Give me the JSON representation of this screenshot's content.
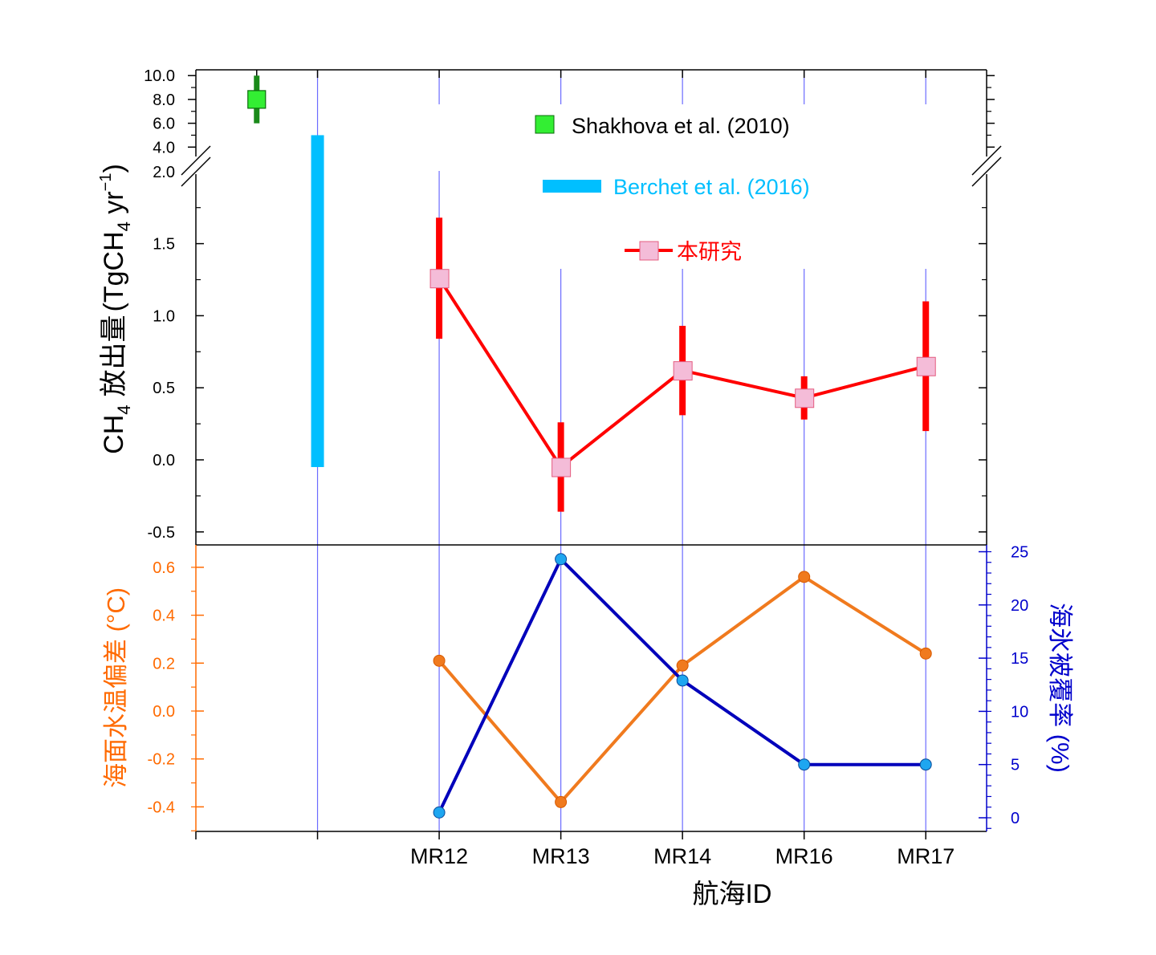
{
  "chart_data": [
    {
      "type": "scatter",
      "panel": "top",
      "ylabel": {
        "prefix": "CH",
        "prefix_sub": "4",
        "main": "放出量",
        "unit_open": "(TgCH",
        "unit_sub": "4",
        "unit_mid": " yr",
        "unit_sup": "−1",
        "unit_close": ")"
      },
      "categories": [
        "MR12",
        "MR13",
        "MR14",
        "MR16",
        "MR17"
      ],
      "xlabel": "航海ID",
      "lower_axis": {
        "ylim": [
          -0.55,
          2.0
        ],
        "ticks": [
          "-0.5",
          "0.0",
          "0.5",
          "1.0",
          "1.5",
          "2.0"
        ]
      },
      "upper_axis": {
        "ylim": [
          2.0,
          10.5
        ],
        "ticks": [
          "2.0",
          "4.0",
          "6.0",
          "8.0",
          "10.0"
        ]
      },
      "series": [
        {
          "name": "本研究",
          "color": "#ff0000",
          "marker_color": "#f4bcd8",
          "x": [
            "MR12",
            "MR13",
            "MR14",
            "MR16",
            "MR17"
          ],
          "values": [
            1.26,
            -0.05,
            0.62,
            0.43,
            0.65
          ],
          "err_low": [
            0.84,
            -0.36,
            0.31,
            0.28,
            0.2
          ],
          "err_high": [
            1.68,
            0.26,
            0.93,
            0.58,
            1.1
          ]
        },
        {
          "name": "Shakhova et al. (2010)",
          "color": "#33ee33",
          "err_color": "#1a8a1a",
          "value": 8.0,
          "err_low": 6.0,
          "err_high": 10.0
        },
        {
          "name": "Berchet et al. (2016)",
          "color": "#00bfff",
          "range_low": -0.05,
          "range_high": 5.0
        }
      ]
    },
    {
      "type": "line",
      "panel": "bottom",
      "categories": [
        "MR12",
        "MR13",
        "MR14",
        "MR16",
        "MR17"
      ],
      "left_axis": {
        "label": "海面水温偏差 (°C)",
        "color": "#ff6a00",
        "ylim": [
          -0.5,
          0.68
        ],
        "ticks": [
          "-0.4",
          "-0.2",
          "0.0",
          "0.2",
          "0.4",
          "0.6"
        ]
      },
      "right_axis": {
        "label": "海氷被覆率 (%)",
        "color": "#0000cc",
        "ylim": [
          -1.2,
          25.5
        ],
        "ticks": [
          "0",
          "5",
          "10",
          "15",
          "20",
          "25"
        ]
      },
      "series": [
        {
          "axis": "left",
          "color": "#f07a1e",
          "values": [
            0.21,
            -0.38,
            0.19,
            0.56,
            0.24
          ]
        },
        {
          "axis": "right",
          "color": "#0000bb",
          "marker_color": "#1ea6f0",
          "values": [
            0.5,
            24.3,
            12.9,
            5.0,
            5.0
          ]
        }
      ]
    }
  ]
}
